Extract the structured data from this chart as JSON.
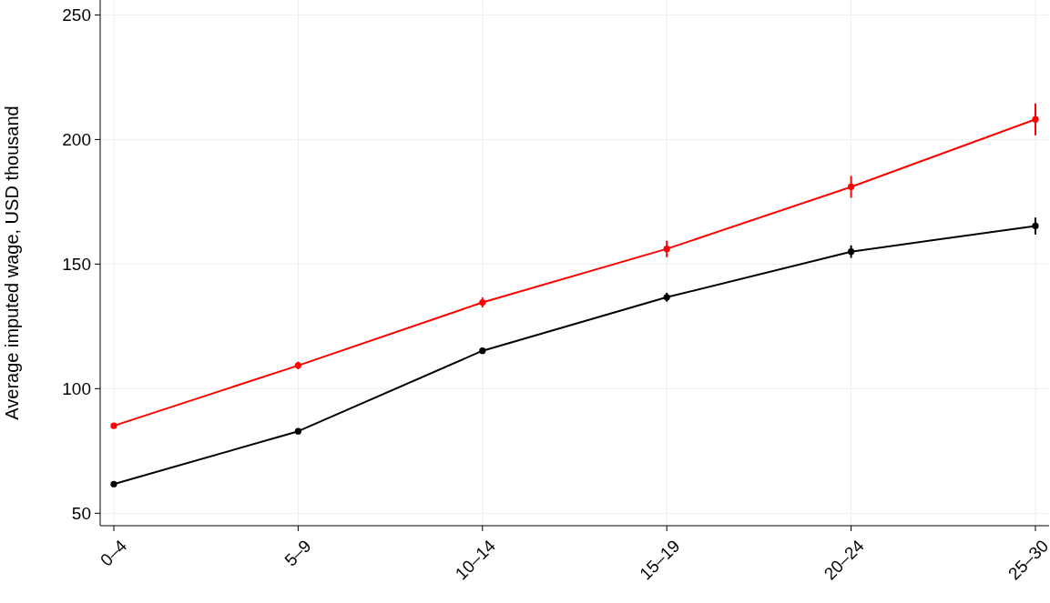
{
  "chart_data": {
    "type": "line",
    "ylabel": "Average imputed wage, USD thousand",
    "categories": [
      "0–4",
      "5–9",
      "10–14",
      "15–19",
      "20–24",
      "25–30"
    ],
    "series": [
      {
        "color": "#ff0000",
        "values": [
          85.1,
          109.3,
          134.6,
          156.1,
          181.0,
          208.1
        ],
        "errors": [
          1,
          1.5,
          2,
          3.3,
          4.4,
          6.4
        ]
      },
      {
        "color": "#000000",
        "values": [
          61.7,
          82.9,
          115.2,
          136.7,
          155.0,
          165.3
        ],
        "errors": [
          0.6,
          0.8,
          1,
          1.8,
          2.5,
          3.4
        ]
      }
    ],
    "ylim": [
      45,
      256
    ],
    "yticks": [
      50,
      100,
      150,
      200,
      250
    ],
    "grid": true,
    "marker": "circle",
    "line_style": "solid"
  }
}
